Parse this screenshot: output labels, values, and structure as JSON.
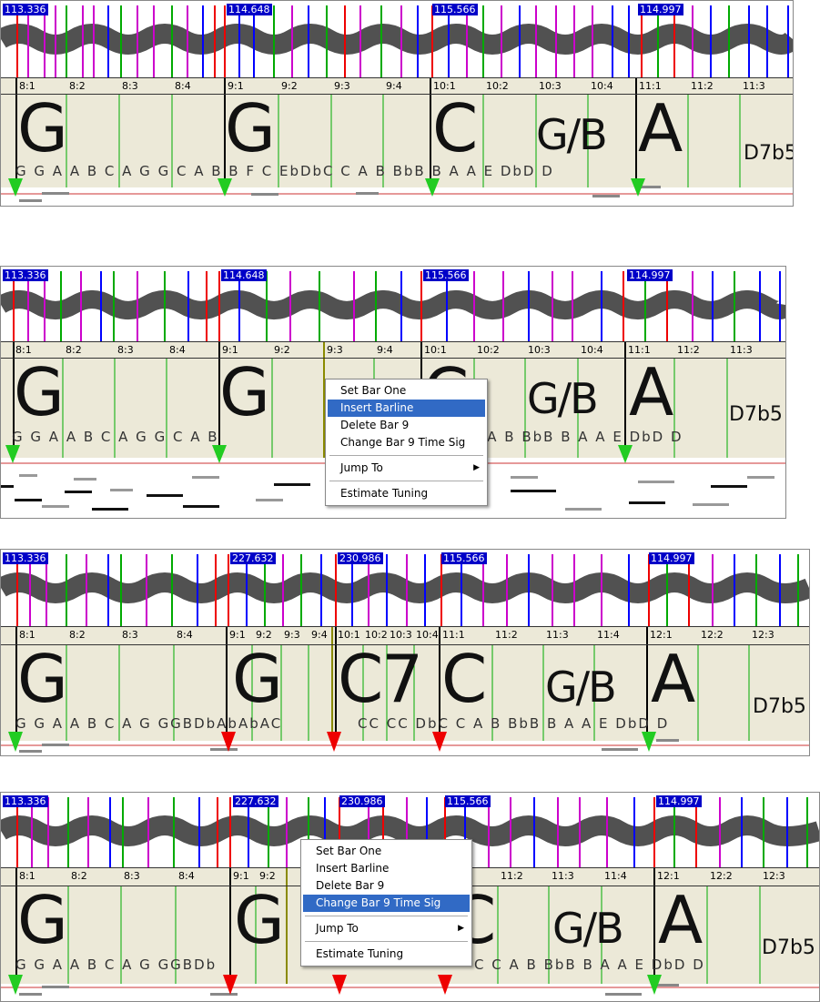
{
  "panels": [
    {
      "tempos": [
        "113.336",
        "114.648",
        "115.566",
        "114.997"
      ],
      "beats": [
        "8:1",
        "8:2",
        "8:3",
        "8:4",
        "9:1",
        "9:2",
        "9:3",
        "9:4",
        "10:1",
        "10:2",
        "10:3",
        "10:4",
        "11:1",
        "11:2",
        "11:3"
      ],
      "chords": [
        "G",
        "G",
        "C",
        "G/B",
        "A",
        "D7b5"
      ],
      "notes": "G G A A B C A G G C A B B F C EbDbC C A B BbB B A A E DbD D"
    },
    {
      "tempos": [
        "113.336",
        "114.648",
        "115.566",
        "114.997"
      ],
      "beats": [
        "8:1",
        "8:2",
        "8:3",
        "8:4",
        "9:1",
        "9:2",
        "9:3",
        "9:4",
        "10:1",
        "10:2",
        "10:3",
        "10:4",
        "11:1",
        "11:2",
        "11:3"
      ],
      "chords": [
        "G",
        "G",
        "C",
        "G/B",
        "A",
        "D7b5"
      ],
      "notes": "G G A A B C A G G C A B",
      "notes2": "C A B BbB B A A E DbD D"
    },
    {
      "tempos": [
        "113.336",
        "227.632",
        "230.986",
        "115.566",
        "114.997"
      ],
      "beats": [
        "8:1",
        "8:2",
        "8:3",
        "8:4",
        "9:1",
        "9:2",
        "9:3",
        "9:4",
        "10:1",
        "10:2",
        "10:3",
        "10:4",
        "11:1",
        "11:2",
        "11:3",
        "11:4",
        "12:1",
        "12:2",
        "12:3"
      ],
      "chords": [
        "G",
        "G",
        "C7",
        "C",
        "G/B",
        "A",
        "D7b5"
      ],
      "notes": "G G A A B C A G GGBDbAbAbAC",
      "notes2": "CC CC DbC C A B BbB B A A E DbD D"
    },
    {
      "tempos": [
        "113.336",
        "227.632",
        "230.986",
        "115.566",
        "114.997"
      ],
      "beats": [
        "8:1",
        "8:2",
        "8:3",
        "8:4",
        "9:1",
        "9:2",
        "11:2",
        "11:3",
        "11:4",
        "12:1",
        "12:2",
        "12:3"
      ],
      "chords": [
        "G",
        "G",
        "C",
        "G/B",
        "A",
        "D7b5"
      ],
      "notes": "G G A A B C A G GGBDb",
      "notes2": "C C A B BbB B A A E DbD D"
    }
  ],
  "menus": [
    {
      "items": [
        "Set Bar One",
        "Insert Barline",
        "Delete Bar 9",
        "Change Bar 9 Time Sig",
        "Jump To",
        "Estimate Tuning"
      ],
      "selected": "Insert Barline"
    },
    {
      "items": [
        "Set Bar One",
        "Insert Barline",
        "Delete Bar 9",
        "Change Bar 9 Time Sig",
        "Jump To",
        "Estimate Tuning"
      ],
      "selected": "Change Bar 9 Time Sig"
    }
  ]
}
